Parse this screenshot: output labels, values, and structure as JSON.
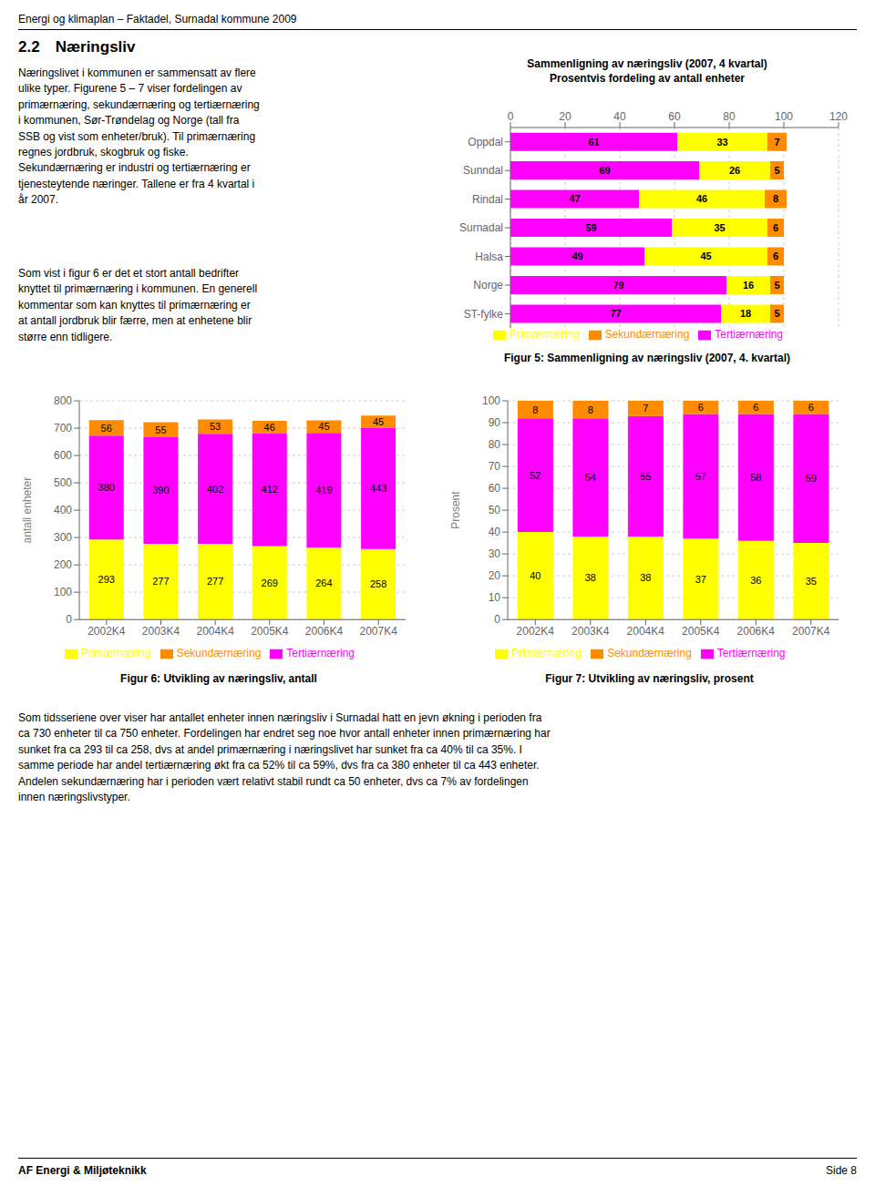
{
  "annotations": [
    "Energi og klimaplan – Faktadel, Surnadal kommune 2009",
    "2.2 Næringsliv",
    "Næringslivet i kommunen er sammensatt av flere\nulike typer. Figurene 5 – 7 viser fordelingen av\nprimærnæring, sekundærnæring og tertiærnæring\ni kommunen, Sør-Trøndelag og Norge (tall fra\nSSB og vist som enheter/bruk). Til primærnæring\nregnes jordbruk, skogbruk og fiske.\nSekundærnæring er industri og tertiærnæring er\ntjenesteytende næringer. Tallene er fra 4 kvartal i\når 2007.",
    "Som vist i figur 6 er det et stort antall bedrifter\nknyttet til primærnæring i kommunen. En generell\nkommentar som kan knyttes til primærnæring er\nat antall jordbruk blir færre, men at enhetene blir\nstørre enn tidligere.",
    "Som tidsseriene over viser har antallet enheter innen næringsliv i Surnadal hatt en jevn økning i perioden fra\nca 730 enheter til ca 750 enheter. Fordelingen har endret seg noe hvor antall enheter innen primærnæring har\nsunket fra ca 293 til ca 258, dvs at andel primærnæring i næringslivet har sunket fra ca 40% til ca 35%. I\nsamme periode har andel tertiærnæring økt fra ca 52% til ca 59%, dvs fra ca 380 enheter til ca 443 enheter.\nAndelen sekundærnæring har i perioden vært relativt stabil rundt ca 50 enheter, dvs ca 7% av fordelingen\ninnen næringslivstyper.",
    "AF Energi & Miljøteknikk",
    "Side 8"
  ],
  "chart_data": [
    {
      "type": "bar",
      "title": "Sammenligning av næringsliv (2007, 4 kvartal)",
      "subtitle": "Prosentvis fordeling av antall enheter",
      "annotations": [
        "Figur 5: Sammenligning av næringsliv (2007, 4. kvartal)"
      ],
      "orientation": "horizontal",
      "stacked": true,
      "data_labels": true,
      "grid": true,
      "legend": "bottom",
      "categories": [
        "Oppdal",
        "Sunndal",
        "Rindal",
        "Surnadal",
        "Halsa",
        "Norge",
        "ST-fylke"
      ],
      "series": [
        {
          "name": "Tertiærnæring",
          "color": "#FF00FF",
          "values": [
            61,
            69,
            47,
            59,
            49,
            79,
            77
          ]
        },
        {
          "name": "Primærnæring",
          "color": "#FFFF00",
          "values": [
            33,
            26,
            46,
            35,
            45,
            16,
            18
          ]
        },
        {
          "name": "Sekundærnæring",
          "color": "#FF8C00",
          "values": [
            7,
            5,
            8,
            6,
            6,
            5,
            5
          ]
        }
      ],
      "xlim": [
        0,
        120
      ],
      "xticks": [
        0,
        20,
        40,
        60,
        80,
        100,
        120
      ]
    },
    {
      "type": "bar",
      "title": "Figur 6: Utvikling av næringsliv, antall",
      "ylabel": "antall enheter",
      "stacked": true,
      "data_labels": true,
      "grid": true,
      "legend": "bottom",
      "categories": [
        "2002K4",
        "2003K4",
        "2004K4",
        "2005K4",
        "2006K4",
        "2007K4"
      ],
      "series": [
        {
          "name": "Primærnæring",
          "color": "#FFFF00",
          "values": [
            293,
            277,
            277,
            269,
            264,
            258
          ]
        },
        {
          "name": "Tertiærnæring",
          "color": "#FF00FF",
          "values": [
            380,
            390,
            402,
            412,
            419,
            443
          ]
        },
        {
          "name": "Sekundærnæring",
          "color": "#FF8C00",
          "values": [
            56,
            55,
            53,
            46,
            45,
            45
          ]
        }
      ],
      "ylim": [
        0,
        800
      ],
      "yticks": [
        0,
        100,
        200,
        300,
        400,
        500,
        600,
        700,
        800
      ]
    },
    {
      "type": "bar",
      "title": "Figur 7: Utvikling av næringsliv, prosent",
      "ylabel": "Prosent",
      "stacked": true,
      "data_labels": true,
      "grid": true,
      "legend": "bottom",
      "categories": [
        "2002K4",
        "2003K4",
        "2004K4",
        "2005K4",
        "2006K4",
        "2007K4"
      ],
      "series": [
        {
          "name": "Primærnæring",
          "color": "#FFFF00",
          "values": [
            40,
            38,
            38,
            37,
            36,
            35
          ]
        },
        {
          "name": "Tertiærnæring",
          "color": "#FF00FF",
          "values": [
            52,
            54,
            55,
            57,
            58,
            59
          ]
        },
        {
          "name": "Sekundærnæring",
          "color": "#FF8C00",
          "values": [
            8,
            8,
            7,
            6,
            6,
            6
          ]
        }
      ],
      "ylim": [
        0,
        100
      ],
      "yticks": [
        0,
        10,
        20,
        30,
        40,
        50,
        60,
        70,
        80,
        90,
        100
      ]
    }
  ]
}
